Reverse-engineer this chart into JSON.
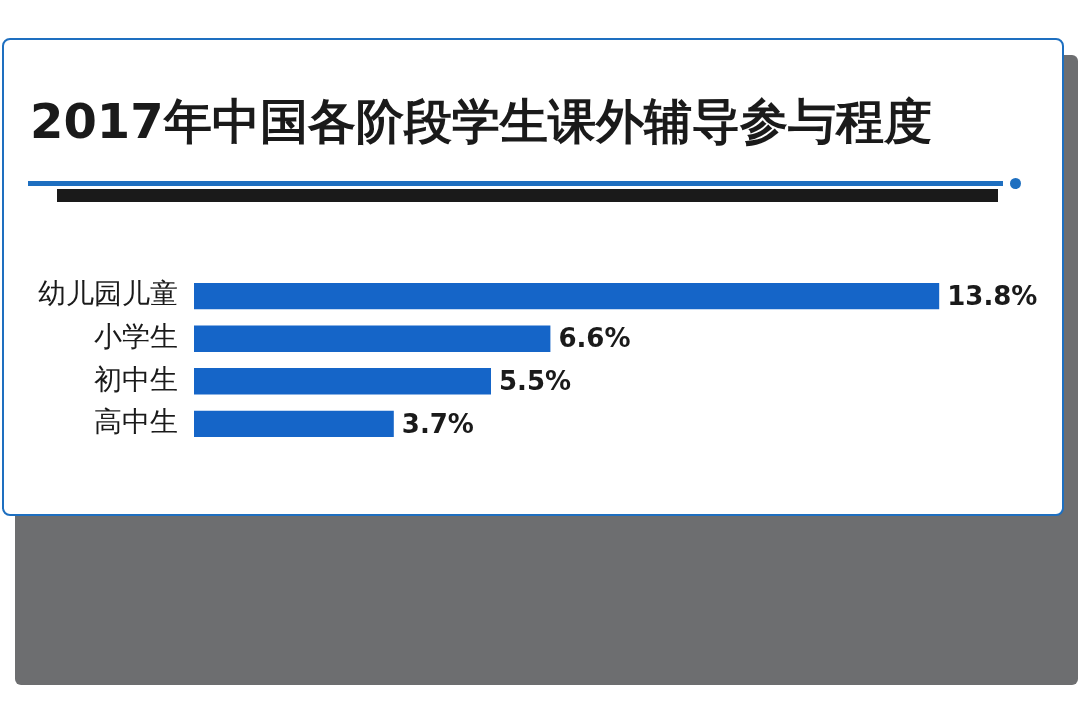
{
  "chart_data": {
    "type": "bar",
    "title": "2017年中国各阶段学生课外辅导参与程度",
    "categories": [
      "幼儿园儿童",
      "小学生",
      "初中生",
      "高中生"
    ],
    "values": [
      13.8,
      6.6,
      5.5,
      3.7
    ],
    "value_labels": [
      "13.8%",
      "6.6%",
      "5.5%",
      "3.7%"
    ],
    "color": "#1565c8",
    "orientation": "horizontal",
    "tick_labels": "y"
  }
}
